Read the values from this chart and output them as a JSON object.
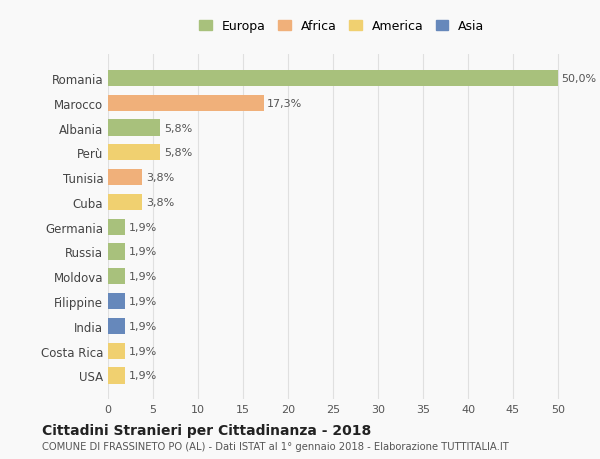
{
  "categories": [
    "Romania",
    "Marocco",
    "Albania",
    "Perù",
    "Tunisia",
    "Cuba",
    "Germania",
    "Russia",
    "Moldova",
    "Filippine",
    "India",
    "Costa Rica",
    "USA"
  ],
  "values": [
    50.0,
    17.3,
    5.8,
    5.8,
    3.8,
    3.8,
    1.9,
    1.9,
    1.9,
    1.9,
    1.9,
    1.9,
    1.9
  ],
  "labels": [
    "50,0%",
    "17,3%",
    "5,8%",
    "5,8%",
    "3,8%",
    "3,8%",
    "1,9%",
    "1,9%",
    "1,9%",
    "1,9%",
    "1,9%",
    "1,9%",
    "1,9%"
  ],
  "colors": [
    "#a8c17c",
    "#f0b07a",
    "#a8c17c",
    "#f0d070",
    "#f0b07a",
    "#f0d070",
    "#a8c17c",
    "#a8c17c",
    "#a8c17c",
    "#6688bb",
    "#6688bb",
    "#f0d070",
    "#f0d070"
  ],
  "legend_labels": [
    "Europa",
    "Africa",
    "America",
    "Asia"
  ],
  "legend_colors": [
    "#a8c17c",
    "#f0b07a",
    "#f0d070",
    "#6688bb"
  ],
  "xlim": [
    0,
    52
  ],
  "xticks": [
    0,
    5,
    10,
    15,
    20,
    25,
    30,
    35,
    40,
    45,
    50
  ],
  "title": "Cittadini Stranieri per Cittadinanza - 2018",
  "subtitle": "COMUNE DI FRASSINETO PO (AL) - Dati ISTAT al 1° gennaio 2018 - Elaborazione TUTTITALIA.IT",
  "background_color": "#f9f9f9",
  "grid_color": "#e0e0e0",
  "bar_height": 0.65
}
